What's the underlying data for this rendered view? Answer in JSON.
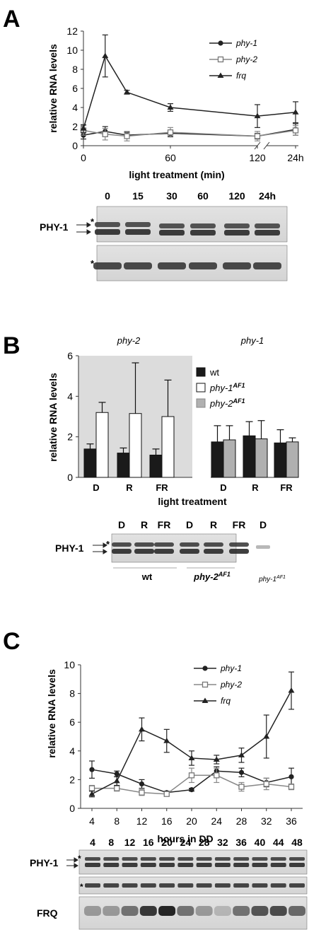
{
  "panels": {
    "A": {
      "letter": "A",
      "chart_data": {
        "type": "line",
        "ylabel": "relative RNA levels",
        "xlabel": "light treatment (min)",
        "ylim": [
          0,
          12
        ],
        "y_ticks": [
          "0",
          "2",
          "4",
          "6",
          "8",
          "10",
          "12"
        ],
        "x_ticks": [
          "0",
          "60",
          "120",
          "24h"
        ],
        "x": [
          0,
          15,
          30,
          60,
          120,
          "24h"
        ],
        "legend_position": "top-right",
        "series": [
          {
            "name": "phy-1",
            "marker": "circle",
            "color": "#222222",
            "values": [
              1.1,
              1.5,
              1.1,
              1.3,
              1.0,
              1.7
            ],
            "errors": [
              0.4,
              0.5,
              0.3,
              0.3,
              0.3,
              0.6
            ]
          },
          {
            "name": "phy-2",
            "marker": "open-square",
            "color": "#888888",
            "values": [
              1.6,
              1.2,
              1.0,
              1.4,
              1.0,
              1.6
            ],
            "errors": [
              0.5,
              0.6,
              0.5,
              0.5,
              0.5,
              0.5
            ]
          },
          {
            "name": "frq",
            "marker": "triangle",
            "color": "#222222",
            "values": [
              1.8,
              9.4,
              5.6,
              4.0,
              3.1,
              3.5
            ],
            "errors": [
              0.4,
              2.2,
              0.2,
              0.4,
              1.2,
              1.1
            ]
          }
        ]
      },
      "blot": {
        "lanes": [
          "0",
          "15",
          "30",
          "60",
          "120",
          "24h"
        ],
        "label": "PHY-1",
        "star": "*"
      }
    },
    "B": {
      "letter": "B",
      "chart_data": {
        "type": "bar",
        "ylabel": "relative RNA levels",
        "xlabel": "light treatment",
        "ylim": [
          0,
          6
        ],
        "y_ticks": [
          "0",
          "2",
          "4",
          "6"
        ],
        "groups": [
          {
            "title": "phy-2",
            "shaded": true,
            "categories": [
              "D",
              "R",
              "FR"
            ],
            "series": [
              {
                "name": "wt",
                "color": "#1a1a1a",
                "values": [
                  1.4,
                  1.2,
                  1.1
                ],
                "errors": [
                  0.25,
                  0.25,
                  0.3
                ]
              },
              {
                "name": "phy-1AF1",
                "color": "#ffffff",
                "values": [
                  3.2,
                  3.15,
                  3.0
                ],
                "errors": [
                  0.5,
                  2.5,
                  1.8
                ]
              }
            ]
          },
          {
            "title": "phy-1",
            "shaded": false,
            "categories": [
              "D",
              "R",
              "FR"
            ],
            "series": [
              {
                "name": "wt",
                "color": "#1a1a1a",
                "values": [
                  1.75,
                  2.05,
                  1.7
                ],
                "errors": [
                  0.8,
                  0.7,
                  0.65
                ]
              },
              {
                "name": "phy-2AF1",
                "color": "#b0b0b0",
                "values": [
                  1.85,
                  1.9,
                  1.75
                ],
                "errors": [
                  0.7,
                  0.9,
                  0.2
                ]
              }
            ]
          }
        ],
        "legend": [
          {
            "base": "wt",
            "sup": "",
            "color": "#1a1a1a"
          },
          {
            "base": "phy-1",
            "sup": "AF1",
            "color": "#ffffff"
          },
          {
            "base": "phy-2",
            "sup": "AF1",
            "color": "#b0b0b0"
          }
        ]
      },
      "blot": {
        "lanes": [
          "D",
          "R",
          "FR",
          "D",
          "R",
          "FR",
          "D"
        ],
        "label": "PHY-1",
        "star": "*",
        "group_wt": "wt",
        "group_phy2_base": "phy-2",
        "group_phy2_sup": "AF1",
        "group_phy1_base": "phy-1",
        "group_phy1_sup": "AF1"
      }
    },
    "C": {
      "letter": "C",
      "chart_data": {
        "type": "line",
        "ylabel": "relative RNA levels",
        "xlabel": "hours in DD",
        "ylim": [
          0,
          10
        ],
        "y_ticks": [
          "0",
          "2",
          "4",
          "6",
          "8",
          "10"
        ],
        "x": [
          4,
          8,
          12,
          16,
          20,
          24,
          28,
          32,
          36
        ],
        "legend_position": "top-right",
        "series": [
          {
            "name": "phy-1",
            "marker": "circle",
            "color": "#222222",
            "values": [
              2.7,
              2.4,
              1.7,
              1.1,
              1.3,
              2.6,
              2.5,
              1.8,
              2.2
            ],
            "errors": [
              0.6,
              0.2,
              0.3,
              0.1,
              0.1,
              0.3,
              0.3,
              0.3,
              0.6
            ]
          },
          {
            "name": "phy-2",
            "marker": "open-square",
            "color": "#888888",
            "values": [
              1.4,
              1.4,
              1.1,
              1.0,
              2.3,
              2.3,
              1.5,
              1.7,
              1.5
            ],
            "errors": [
              0.2,
              0.2,
              0.2,
              0.1,
              0.5,
              0.5,
              0.3,
              0.4,
              0.2
            ]
          },
          {
            "name": "frq",
            "marker": "triangle",
            "color": "#222222",
            "values": [
              1.0,
              1.9,
              5.5,
              4.7,
              3.5,
              3.4,
              3.7,
              5.0,
              8.2
            ],
            "errors": [
              0.2,
              0.3,
              0.8,
              0.8,
              0.5,
              0.3,
              0.5,
              1.5,
              1.3
            ]
          }
        ]
      },
      "blot": {
        "lanes": [
          "4",
          "8",
          "12",
          "16",
          "20",
          "24",
          "28",
          "32",
          "36",
          "40",
          "44",
          "48"
        ],
        "label": "PHY-1",
        "label2": "FRQ",
        "star": "*",
        "frq_intensity": [
          0.35,
          0.35,
          0.55,
          0.85,
          0.95,
          0.55,
          0.35,
          0.2,
          0.55,
          0.7,
          0.75,
          0.6
        ]
      }
    }
  }
}
